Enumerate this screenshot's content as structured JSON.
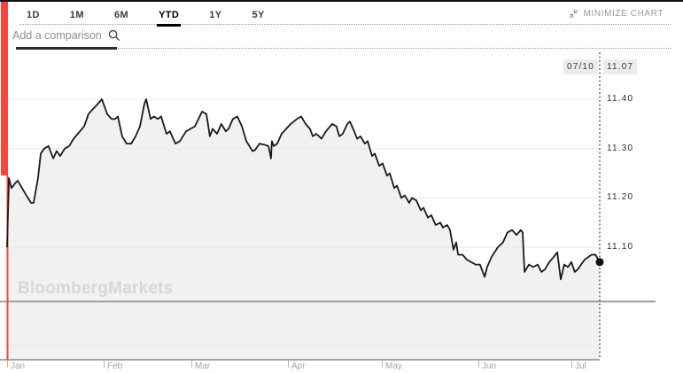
{
  "header": {
    "tabs": [
      {
        "id": "1d",
        "label": "1D",
        "active": false
      },
      {
        "id": "1m",
        "label": "1M",
        "active": false
      },
      {
        "id": "6m",
        "label": "6M",
        "active": false
      },
      {
        "id": "ytd",
        "label": "YTD",
        "active": true
      },
      {
        "id": "1y",
        "label": "1Y",
        "active": false
      },
      {
        "id": "5y",
        "label": "5Y",
        "active": false
      }
    ],
    "minimize_label": "MINIMIZE CHART"
  },
  "comparison": {
    "placeholder": "Add a comparison"
  },
  "watermark": "BloombergMarkets",
  "crosshair": {
    "date_label": "07/10",
    "value_label": "11.07"
  },
  "colors": {
    "accent_red": "#f9463c",
    "line": "#1a1a1a",
    "area_fill": "#f1f1f1",
    "grid": "#e9e9e9",
    "prev_close_line": "#9e9e9e",
    "axis_line": "#8a8a8a",
    "tooltip_bg": "#ececec",
    "muted_text": "#9b9b9b"
  },
  "chart_data": {
    "type": "area",
    "title": "",
    "xlabel": "",
    "ylabel": "",
    "legend": "none",
    "grid": "on",
    "x_range_days": 190,
    "x_ticks": [
      {
        "label": "Jan",
        "day": 0
      },
      {
        "label": "Feb",
        "day": 31
      },
      {
        "label": "Mar",
        "day": 59
      },
      {
        "label": "Apr",
        "day": 90
      },
      {
        "label": "May",
        "day": 120
      },
      {
        "label": "Jun",
        "day": 151
      },
      {
        "label": "Jul",
        "day": 181
      }
    ],
    "y_ticks": [
      {
        "label": "11.40",
        "value": 11.4
      },
      {
        "label": "11.30",
        "value": 11.3
      },
      {
        "label": "11.20",
        "value": 11.2
      },
      {
        "label": "11.10",
        "value": 11.1
      }
    ],
    "gridline_values": [
      11.4,
      11.3,
      11.2,
      11.1,
      10.9
    ],
    "ylim": [
      10.88,
      11.47
    ],
    "prev_close_value": 10.99,
    "last_point": {
      "date": "07/10",
      "value": 11.07
    },
    "series": [
      {
        "name": "price",
        "points": [
          [
            0,
            11.1
          ],
          [
            0.6,
            11.24
          ],
          [
            1.4,
            11.22
          ],
          [
            2.6,
            11.23
          ],
          [
            3.4,
            11.235
          ],
          [
            4.8,
            11.22
          ],
          [
            6.2,
            11.205
          ],
          [
            7.7,
            11.19
          ],
          [
            8.5,
            11.19
          ],
          [
            9.9,
            11.24
          ],
          [
            10.8,
            11.29
          ],
          [
            11.9,
            11.3
          ],
          [
            13.3,
            11.305
          ],
          [
            14.8,
            11.28
          ],
          [
            15.9,
            11.295
          ],
          [
            17.0,
            11.285
          ],
          [
            18.5,
            11.3
          ],
          [
            19.9,
            11.305
          ],
          [
            21.3,
            11.32
          ],
          [
            22.7,
            11.33
          ],
          [
            24.7,
            11.345
          ],
          [
            26.1,
            11.37
          ],
          [
            27.5,
            11.38
          ],
          [
            29.0,
            11.39
          ],
          [
            30.4,
            11.4
          ],
          [
            32.1,
            11.37
          ],
          [
            33.5,
            11.36
          ],
          [
            34.6,
            11.36
          ],
          [
            35.5,
            11.365
          ],
          [
            36.9,
            11.325
          ],
          [
            38.3,
            11.31
          ],
          [
            39.8,
            11.31
          ],
          [
            41.2,
            11.325
          ],
          [
            42.6,
            11.345
          ],
          [
            44.0,
            11.39
          ],
          [
            44.6,
            11.4
          ],
          [
            46.0,
            11.36
          ],
          [
            47.1,
            11.365
          ],
          [
            48.3,
            11.36
          ],
          [
            49.4,
            11.365
          ],
          [
            51.1,
            11.33
          ],
          [
            52.2,
            11.335
          ],
          [
            54.0,
            11.31
          ],
          [
            55.4,
            11.315
          ],
          [
            57.4,
            11.335
          ],
          [
            58.8,
            11.34
          ],
          [
            60.2,
            11.345
          ],
          [
            62.5,
            11.375
          ],
          [
            63.9,
            11.37
          ],
          [
            65.0,
            11.325
          ],
          [
            65.9,
            11.34
          ],
          [
            67.3,
            11.33
          ],
          [
            68.7,
            11.35
          ],
          [
            70.1,
            11.335
          ],
          [
            71.0,
            11.34
          ],
          [
            72.4,
            11.36
          ],
          [
            73.8,
            11.365
          ],
          [
            75.3,
            11.345
          ],
          [
            76.7,
            11.315
          ],
          [
            78.7,
            11.295
          ],
          [
            79.5,
            11.297
          ],
          [
            80.9,
            11.31
          ],
          [
            82.4,
            11.308
          ],
          [
            83.8,
            11.305
          ],
          [
            84.6,
            11.28
          ],
          [
            84.9,
            11.315
          ],
          [
            85.5,
            11.305
          ],
          [
            86.6,
            11.31
          ],
          [
            88.0,
            11.33
          ],
          [
            89.5,
            11.34
          ],
          [
            90.9,
            11.35
          ],
          [
            92.9,
            11.36
          ],
          [
            94.3,
            11.365
          ],
          [
            95.7,
            11.35
          ],
          [
            97.1,
            11.34
          ],
          [
            98.0,
            11.325
          ],
          [
            99.1,
            11.33
          ],
          [
            100.0,
            11.325
          ],
          [
            100.8,
            11.32
          ],
          [
            102.2,
            11.335
          ],
          [
            104.2,
            11.35
          ],
          [
            105.6,
            11.345
          ],
          [
            106.5,
            11.325
          ],
          [
            107.6,
            11.33
          ],
          [
            109.1,
            11.35
          ],
          [
            109.9,
            11.355
          ],
          [
            111.3,
            11.335
          ],
          [
            112.2,
            11.32
          ],
          [
            113.3,
            11.325
          ],
          [
            114.7,
            11.31
          ],
          [
            115.6,
            11.315
          ],
          [
            117.0,
            11.285
          ],
          [
            117.9,
            11.29
          ],
          [
            119.3,
            11.265
          ],
          [
            120.4,
            11.27
          ],
          [
            121.8,
            11.245
          ],
          [
            122.7,
            11.25
          ],
          [
            124.1,
            11.22
          ],
          [
            125.0,
            11.225
          ],
          [
            126.4,
            11.2
          ],
          [
            127.5,
            11.205
          ],
          [
            128.9,
            11.19
          ],
          [
            129.8,
            11.2
          ],
          [
            131.2,
            11.195
          ],
          [
            132.6,
            11.175
          ],
          [
            133.5,
            11.18
          ],
          [
            134.9,
            11.16
          ],
          [
            136.0,
            11.165
          ],
          [
            137.4,
            11.145
          ],
          [
            138.9,
            11.15
          ],
          [
            139.7,
            11.14
          ],
          [
            141.1,
            11.145
          ],
          [
            142.0,
            11.135
          ],
          [
            143.1,
            11.095
          ],
          [
            144.0,
            11.11
          ],
          [
            144.6,
            11.085
          ],
          [
            146.0,
            11.085
          ],
          [
            147.4,
            11.075
          ],
          [
            148.8,
            11.07
          ],
          [
            150.2,
            11.065
          ],
          [
            151.6,
            11.065
          ],
          [
            153.1,
            11.04
          ],
          [
            153.9,
            11.06
          ],
          [
            155.3,
            11.08
          ],
          [
            157.3,
            11.1
          ],
          [
            159.0,
            11.11
          ],
          [
            160.4,
            11.13
          ],
          [
            161.9,
            11.135
          ],
          [
            163.3,
            11.125
          ],
          [
            164.7,
            11.135
          ],
          [
            165.3,
            11.13
          ],
          [
            165.9,
            11.05
          ],
          [
            167.3,
            11.065
          ],
          [
            168.7,
            11.06
          ],
          [
            170.1,
            11.065
          ],
          [
            171.3,
            11.05
          ],
          [
            172.4,
            11.055
          ],
          [
            173.8,
            11.07
          ],
          [
            175.2,
            11.08
          ],
          [
            176.4,
            11.09
          ],
          [
            177.5,
            11.035
          ],
          [
            178.6,
            11.065
          ],
          [
            179.8,
            11.06
          ],
          [
            180.9,
            11.07
          ],
          [
            182.0,
            11.05
          ],
          [
            182.9,
            11.055
          ],
          [
            184.0,
            11.065
          ],
          [
            185.2,
            11.075
          ],
          [
            186.3,
            11.08
          ],
          [
            187.4,
            11.085
          ],
          [
            188.6,
            11.085
          ],
          [
            190,
            11.07
          ]
        ]
      }
    ]
  }
}
